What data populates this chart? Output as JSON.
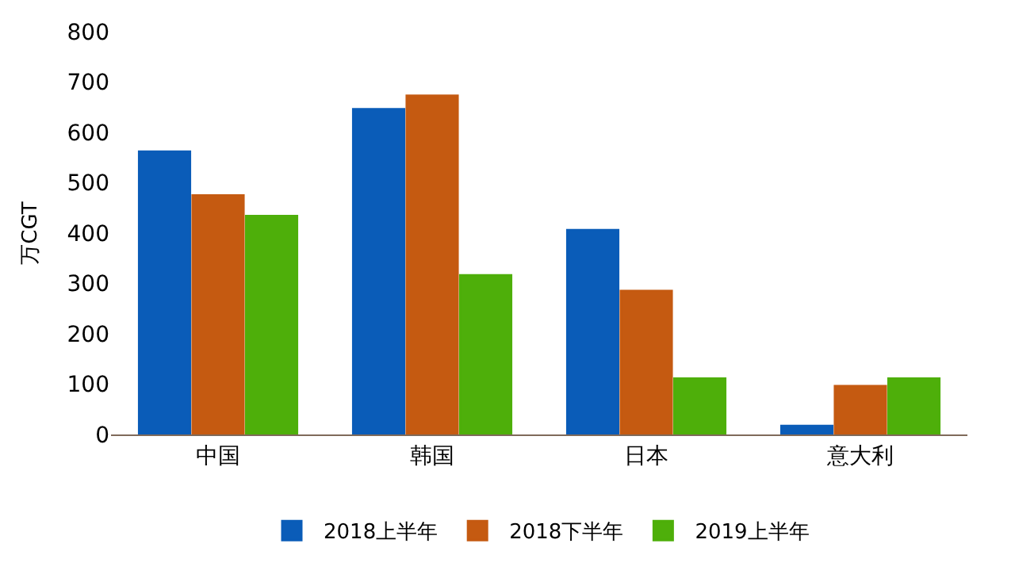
{
  "chart_data": {
    "type": "bar",
    "ylabel": "万CGT",
    "categories": [
      "中国",
      "韩国",
      "日本",
      "意大利"
    ],
    "series": [
      {
        "name": "2018上半年",
        "color": "#0a5cb8",
        "values": [
          562,
          646,
          406,
          17
        ]
      },
      {
        "name": "2018下半年",
        "color": "#c55a11",
        "values": [
          475,
          673,
          285,
          96
        ]
      },
      {
        "name": "2019上半年",
        "color": "#4eaf0a",
        "values": [
          434,
          316,
          111,
          111
        ]
      }
    ],
    "ylim": [
      0,
      800
    ],
    "yticks": [
      0,
      100,
      200,
      300,
      400,
      500,
      600,
      700,
      800
    ],
    "legend": "bottom"
  }
}
